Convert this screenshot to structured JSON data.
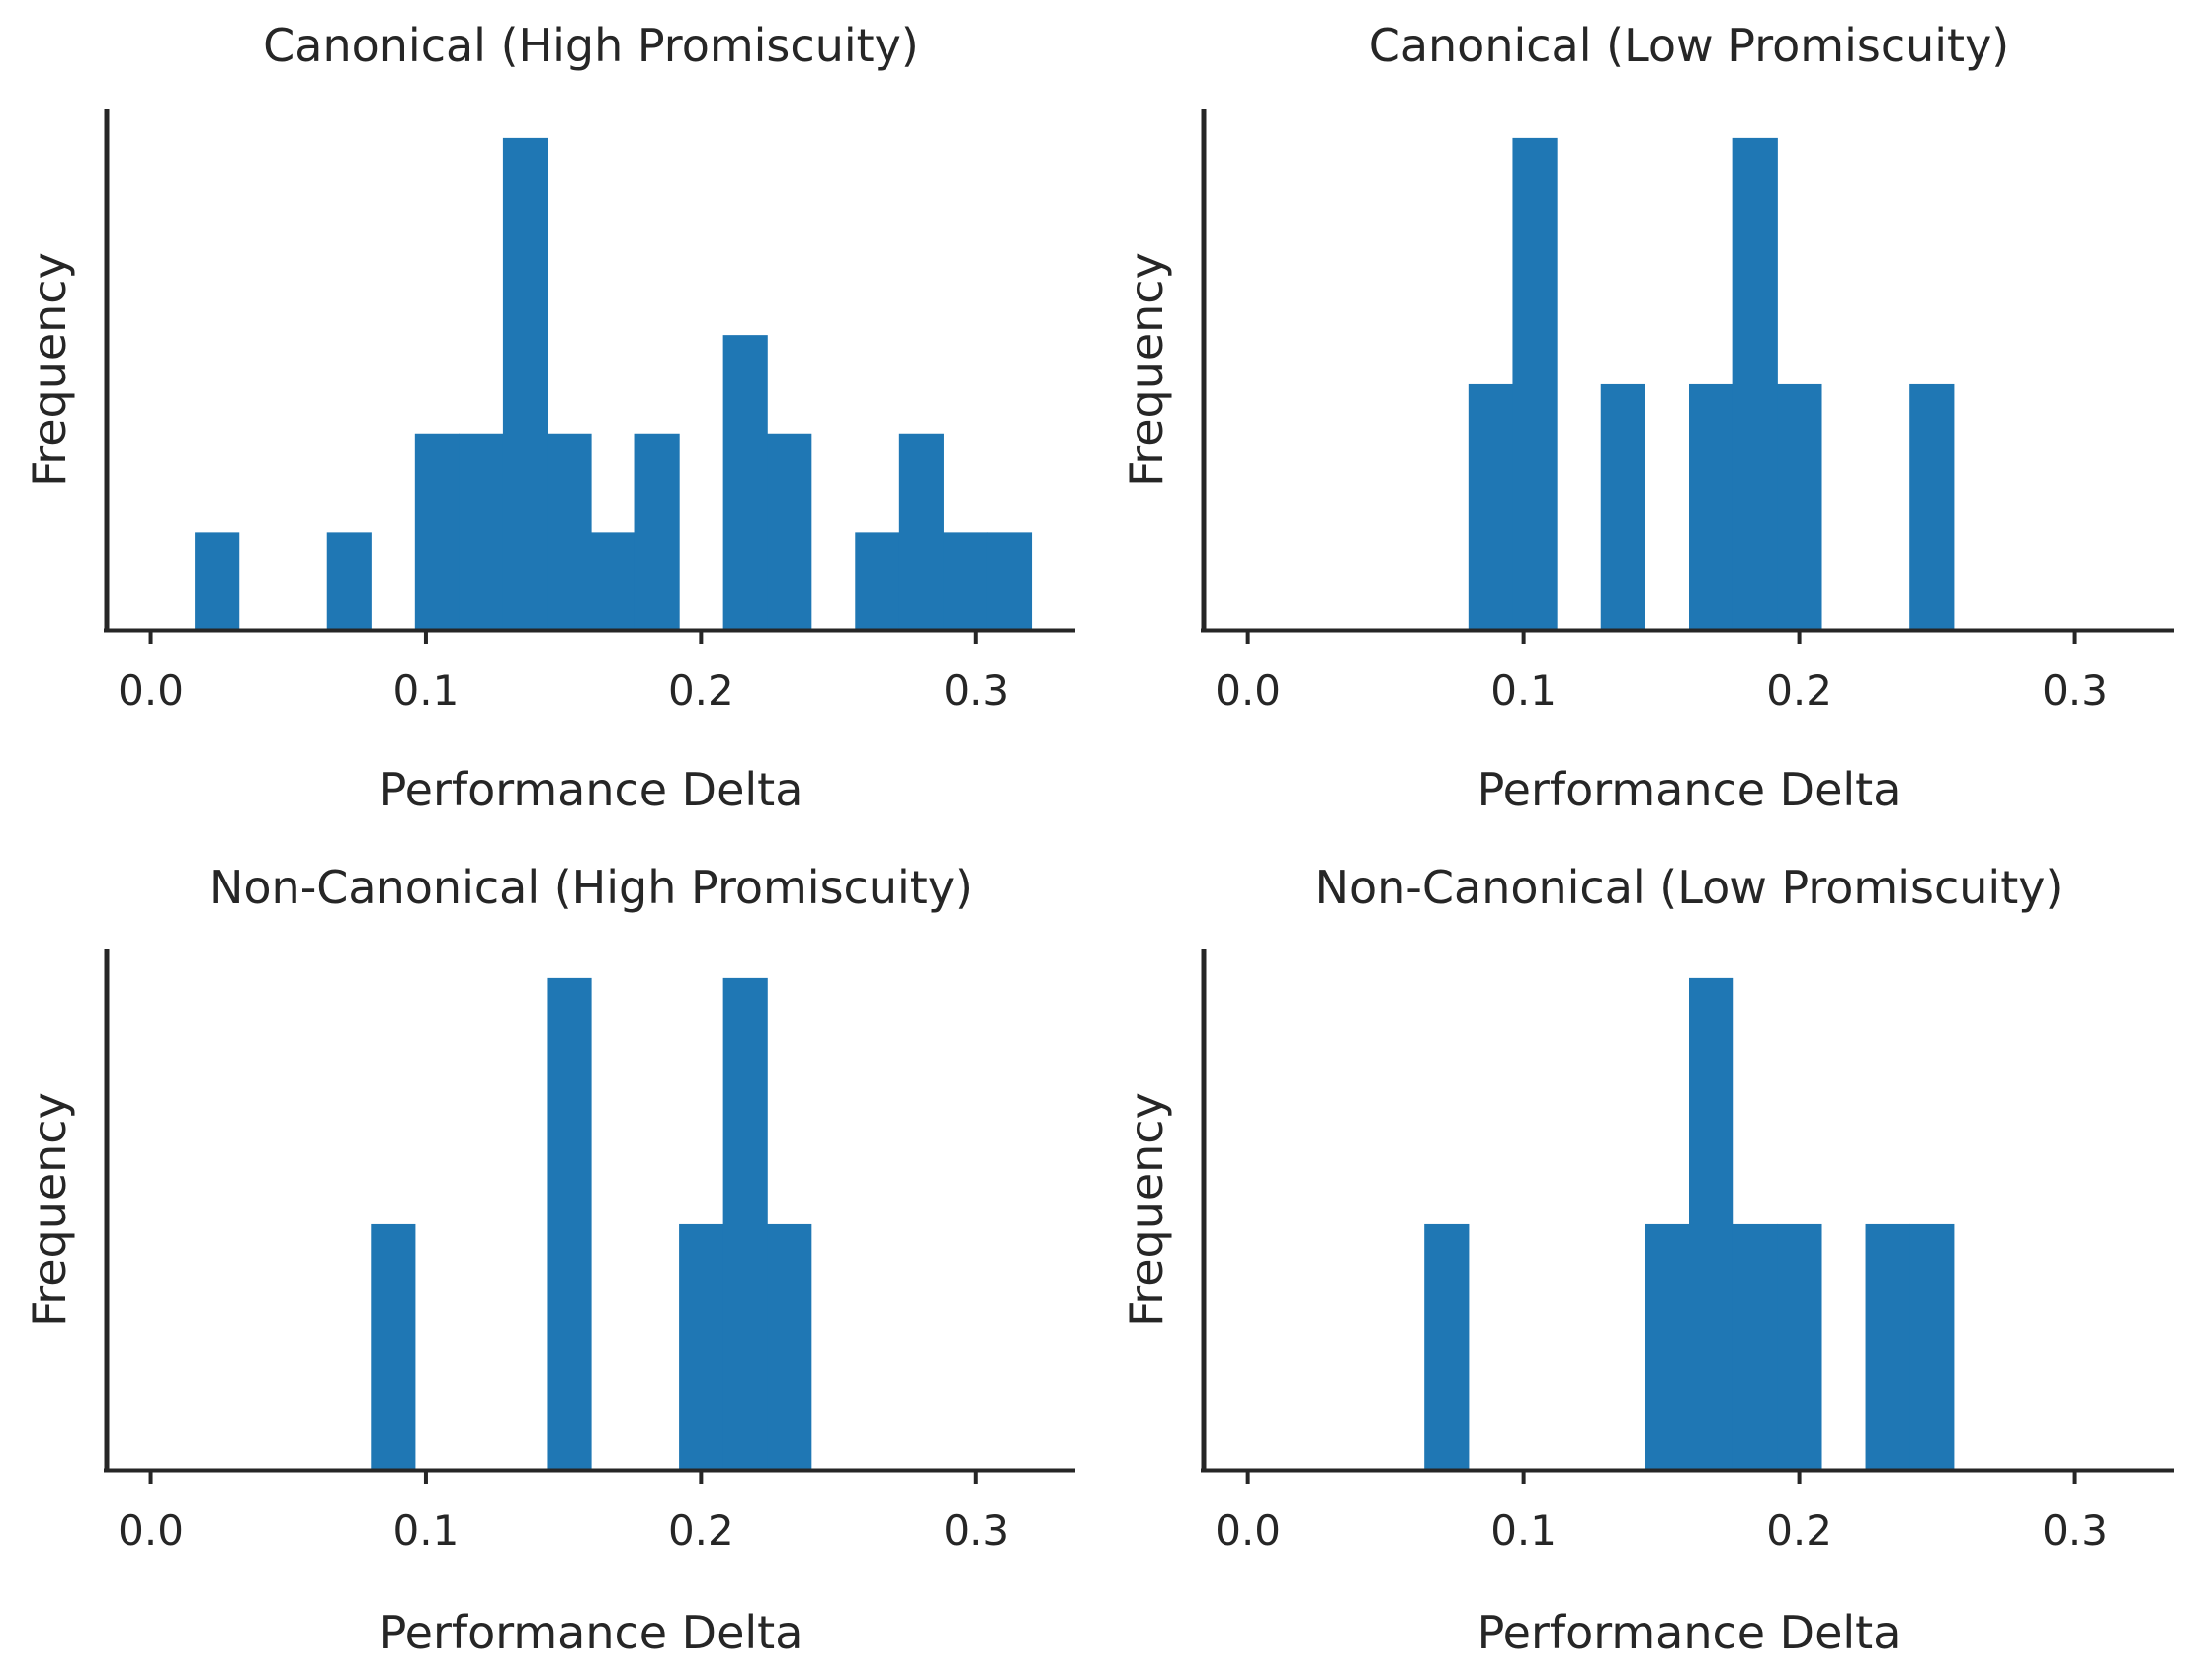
{
  "colors": {
    "bar": "#1f77b4",
    "axis": "#262626",
    "text": "#262626"
  },
  "chart_data": [
    {
      "type": "bar",
      "title": "Canonical (High Promiscuity)",
      "xlabel": "Performance Delta",
      "ylabel": "Frequency",
      "xlim": [
        -0.016,
        0.336
      ],
      "ylim": [
        0,
        5.3
      ],
      "xticks": [
        0.0,
        0.1,
        0.2,
        0.3
      ],
      "xtick_labels": [
        "0.0",
        "0.1",
        "0.2",
        "0.3"
      ],
      "bins": [
        {
          "x0": 0.016,
          "x1": 0.032,
          "count": 1
        },
        {
          "x0": 0.064,
          "x1": 0.08,
          "count": 1
        },
        {
          "x0": 0.096,
          "x1": 0.112,
          "count": 2
        },
        {
          "x0": 0.112,
          "x1": 0.128,
          "count": 2
        },
        {
          "x0": 0.128,
          "x1": 0.144,
          "count": 5
        },
        {
          "x0": 0.144,
          "x1": 0.16,
          "count": 2
        },
        {
          "x0": 0.16,
          "x1": 0.176,
          "count": 1
        },
        {
          "x0": 0.176,
          "x1": 0.192,
          "count": 2
        },
        {
          "x0": 0.208,
          "x1": 0.224,
          "count": 3
        },
        {
          "x0": 0.224,
          "x1": 0.24,
          "count": 2
        },
        {
          "x0": 0.256,
          "x1": 0.272,
          "count": 1
        },
        {
          "x0": 0.272,
          "x1": 0.288,
          "count": 2
        },
        {
          "x0": 0.288,
          "x1": 0.304,
          "count": 1
        },
        {
          "x0": 0.304,
          "x1": 0.32,
          "count": 1
        }
      ]
    },
    {
      "type": "bar",
      "title": "Canonical (Low Promiscuity)",
      "xlabel": "Performance Delta",
      "ylabel": "Frequency",
      "xlim": [
        -0.016,
        0.336
      ],
      "ylim": [
        0,
        2.12
      ],
      "xticks": [
        0.0,
        0.1,
        0.2,
        0.3
      ],
      "xtick_labels": [
        "0.0",
        "0.1",
        "0.2",
        "0.3"
      ],
      "bins": [
        {
          "x0": 0.08,
          "x1": 0.096,
          "count": 1
        },
        {
          "x0": 0.096,
          "x1": 0.112,
          "count": 2
        },
        {
          "x0": 0.128,
          "x1": 0.144,
          "count": 1
        },
        {
          "x0": 0.16,
          "x1": 0.176,
          "count": 1
        },
        {
          "x0": 0.176,
          "x1": 0.192,
          "count": 2
        },
        {
          "x0": 0.192,
          "x1": 0.208,
          "count": 1
        },
        {
          "x0": 0.24,
          "x1": 0.256,
          "count": 1
        }
      ]
    },
    {
      "type": "bar",
      "title": "Non-Canonical (High Promiscuity)",
      "xlabel": "Performance Delta",
      "ylabel": "Frequency",
      "xlim": [
        -0.016,
        0.336
      ],
      "ylim": [
        0,
        2.12
      ],
      "xticks": [
        0.0,
        0.1,
        0.2,
        0.3
      ],
      "xtick_labels": [
        "0.0",
        "0.1",
        "0.2",
        "0.3"
      ],
      "bins": [
        {
          "x0": 0.08,
          "x1": 0.096,
          "count": 1
        },
        {
          "x0": 0.144,
          "x1": 0.16,
          "count": 2
        },
        {
          "x0": 0.192,
          "x1": 0.208,
          "count": 1
        },
        {
          "x0": 0.208,
          "x1": 0.224,
          "count": 2
        },
        {
          "x0": 0.224,
          "x1": 0.24,
          "count": 1
        }
      ]
    },
    {
      "type": "bar",
      "title": "Non-Canonical (Low Promiscuity)",
      "xlabel": "Performance Delta",
      "ylabel": "Frequency",
      "xlim": [
        -0.016,
        0.336
      ],
      "ylim": [
        0,
        2.12
      ],
      "xticks": [
        0.0,
        0.1,
        0.2,
        0.3
      ],
      "xtick_labels": [
        "0.0",
        "0.1",
        "0.2",
        "0.3"
      ],
      "bins": [
        {
          "x0": 0.064,
          "x1": 0.08,
          "count": 1
        },
        {
          "x0": 0.144,
          "x1": 0.16,
          "count": 1
        },
        {
          "x0": 0.16,
          "x1": 0.176,
          "count": 2
        },
        {
          "x0": 0.176,
          "x1": 0.192,
          "count": 1
        },
        {
          "x0": 0.192,
          "x1": 0.208,
          "count": 1
        },
        {
          "x0": 0.224,
          "x1": 0.24,
          "count": 1
        },
        {
          "x0": 0.24,
          "x1": 0.256,
          "count": 1
        }
      ]
    }
  ]
}
